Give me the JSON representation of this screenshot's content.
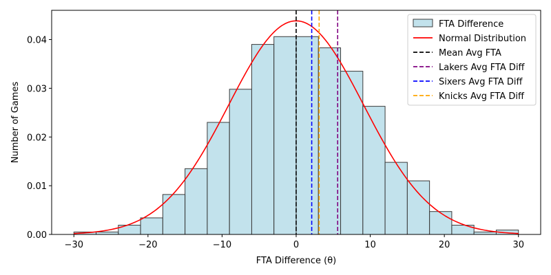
{
  "chart_data": {
    "type": "bar",
    "title": "",
    "xlabel": "FTA Difference (θ)",
    "ylabel": "Number of Games",
    "xlim": [
      -33,
      33
    ],
    "ylim": [
      0,
      0.046
    ],
    "xticks": [
      -30,
      -20,
      -10,
      0,
      10,
      20,
      30
    ],
    "yticks": [
      0.0,
      0.01,
      0.02,
      0.03,
      0.04
    ],
    "ytick_labels": [
      "0.00",
      "0.01",
      "0.02",
      "0.03",
      "0.04"
    ],
    "grid": false,
    "legend_position": "top-right",
    "histogram": {
      "name": "FTA Difference",
      "bin_edges": [
        -30,
        -27,
        -24,
        -21,
        -18,
        -15,
        -12,
        -9,
        -6,
        -3,
        0,
        3,
        6,
        9,
        12,
        15,
        18,
        21,
        24,
        27,
        30
      ],
      "values": [
        0.0005,
        0.0005,
        0.0019,
        0.0034,
        0.0082,
        0.0135,
        0.023,
        0.0298,
        0.039,
        0.0406,
        0.0406,
        0.0383,
        0.0335,
        0.0263,
        0.0148,
        0.011,
        0.0047,
        0.0019,
        0.0005,
        0.0009
      ],
      "fill_color": "#add8e6",
      "edge_color": "#3a3a3a"
    },
    "normal_curve": {
      "name": "Normal Distribution",
      "mean": 0,
      "std": 9.1,
      "color": "#ff0000"
    },
    "vertical_lines": [
      {
        "name": "Mean Avg FTA",
        "x": 0,
        "color": "#000000"
      },
      {
        "name": "Lakers Avg FTA Diff",
        "x": 5.6,
        "color": "#800080"
      },
      {
        "name": "Sixers Avg FTA Diff",
        "x": 2.1,
        "color": "#0000ff"
      },
      {
        "name": "Knicks Avg FTA Diff",
        "x": 3.1,
        "color": "#ffa500"
      }
    ],
    "legend": [
      "FTA Difference",
      "Normal Distribution",
      "Mean Avg FTA",
      "Lakers Avg FTA Diff",
      "Sixers Avg FTA Diff",
      "Knicks Avg FTA Diff"
    ]
  }
}
